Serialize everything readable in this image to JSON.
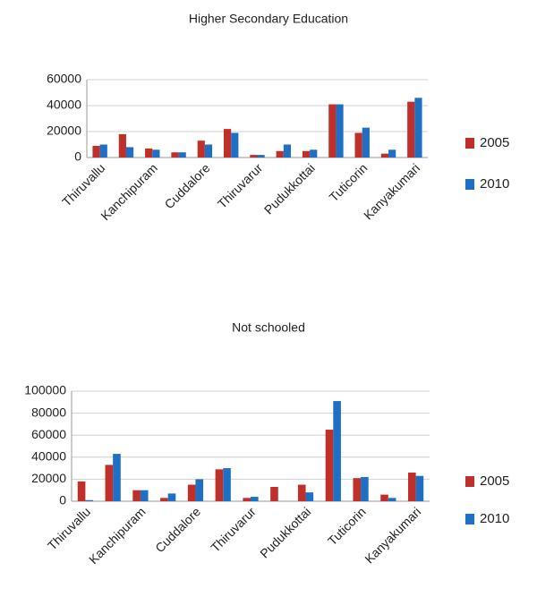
{
  "chart_data": [
    {
      "type": "bar",
      "title": "Higher Secondary Education",
      "categories": [
        "Thiruvallu",
        null,
        "Kanchipuram",
        null,
        "Cuddalore",
        null,
        "Thiruvarur",
        null,
        "Pudukkottai",
        null,
        "Tuticorin",
        null,
        "Kanyakumari"
      ],
      "series": [
        {
          "name": "2005",
          "color": "#c0302b",
          "values": [
            9000,
            18000,
            7000,
            4000,
            13000,
            22000,
            2000,
            5000,
            5000,
            41000,
            19000,
            3000,
            43000
          ]
        },
        {
          "name": "2010",
          "color": "#1f6fc5",
          "values": [
            10000,
            8000,
            6000,
            4000,
            10000,
            19000,
            2000,
            10000,
            6000,
            41000,
            23000,
            6000,
            46000
          ]
        }
      ],
      "ylim": [
        0,
        60000
      ],
      "yticks": [
        0,
        20000,
        40000,
        60000
      ],
      "grid": true,
      "legend": "right"
    },
    {
      "type": "bar",
      "title": "Not schooled",
      "categories": [
        "Thiruvallu",
        null,
        "Kanchipuram",
        null,
        "Cuddalore",
        null,
        "Thiruvarur",
        null,
        "Pudukkottai",
        null,
        "Tuticorin",
        null,
        "Kanyakumari"
      ],
      "series": [
        {
          "name": "2005",
          "color": "#c0302b",
          "values": [
            18000,
            33000,
            10000,
            3000,
            15000,
            29000,
            3000,
            13000,
            15000,
            65000,
            21000,
            6000,
            26000
          ]
        },
        {
          "name": "2010",
          "color": "#1f6fc5",
          "values": [
            1000,
            43000,
            10000,
            7000,
            20000,
            30000,
            4000,
            0,
            8000,
            91000,
            22000,
            3000,
            23000
          ]
        }
      ],
      "ylim": [
        0,
        100000
      ],
      "yticks": [
        0,
        20000,
        40000,
        60000,
        80000,
        100000
      ],
      "grid": true,
      "legend": "right"
    }
  ]
}
